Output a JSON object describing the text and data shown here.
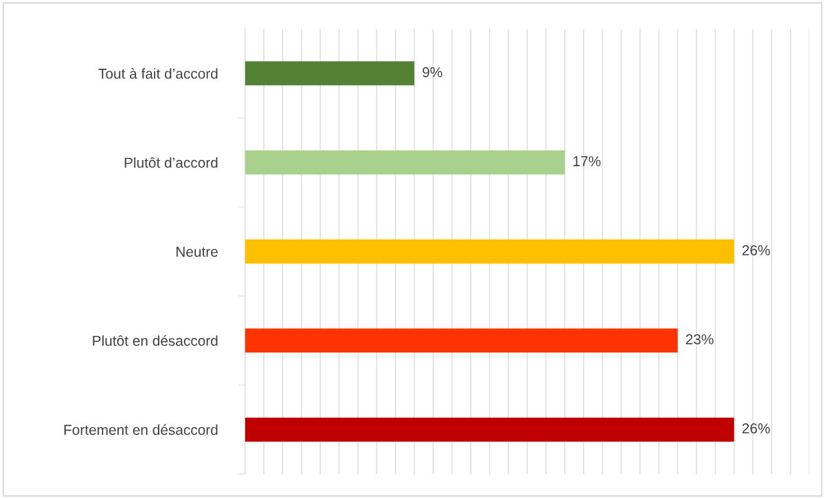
{
  "chart_data": {
    "type": "bar",
    "orientation": "horizontal",
    "categories": [
      "Tout à fait d’accord",
      "Plutôt d’accord",
      "Neutre",
      "Plutôt en désaccord",
      "Fortement en désaccord"
    ],
    "values": [
      9,
      17,
      26,
      23,
      26
    ],
    "colors": [
      "#548235",
      "#a9d18e",
      "#ffc000",
      "#ff3300",
      "#c00000"
    ],
    "value_labels": [
      "9%",
      "17%",
      "26%",
      "23%",
      "26%"
    ],
    "xlim": [
      0,
      30
    ],
    "xticks": [
      {
        "value": 0,
        "label": null
      },
      {
        "value": 1,
        "label": null
      },
      {
        "value": 2,
        "label": null
      },
      {
        "value": 3,
        "label": null
      },
      {
        "value": 4,
        "label": null
      },
      {
        "value": 5,
        "label": null
      },
      {
        "value": 6,
        "label": null
      },
      {
        "value": 7,
        "label": null
      },
      {
        "value": 8,
        "label": null
      },
      {
        "value": 9,
        "label": null
      },
      {
        "value": 10,
        "label": null
      },
      {
        "value": 11,
        "label": null
      },
      {
        "value": 12,
        "label": null
      },
      {
        "value": 13,
        "label": null
      },
      {
        "value": 14,
        "label": null
      },
      {
        "value": 15,
        "label": null
      },
      {
        "value": 16,
        "label": null
      },
      {
        "value": 17,
        "label": null
      },
      {
        "value": 18,
        "label": null
      },
      {
        "value": 19,
        "label": null
      },
      {
        "value": 20,
        "label": null
      },
      {
        "value": 21,
        "label": null
      },
      {
        "value": 22,
        "label": null
      },
      {
        "value": 23,
        "label": null
      },
      {
        "value": 24,
        "label": null
      },
      {
        "value": 25,
        "label": null
      },
      {
        "value": 26,
        "label": null
      },
      {
        "value": 27,
        "label": null
      },
      {
        "value": 28,
        "label": null
      },
      {
        "value": 29,
        "label": null
      },
      {
        "value": 30,
        "label": null
      }
    ],
    "grid": "x",
    "tick_labels": "y",
    "legend": false
  }
}
